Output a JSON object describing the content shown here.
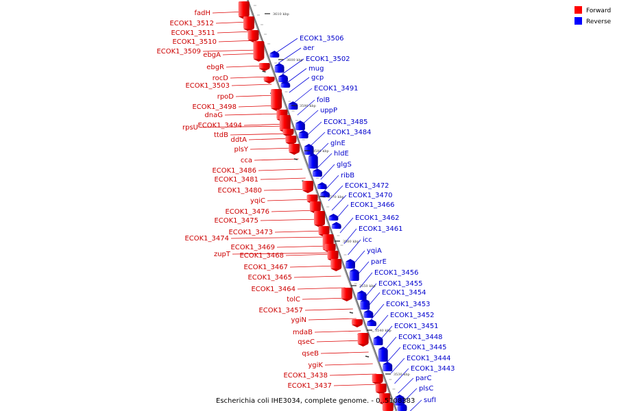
{
  "caption": "Escherichia coli IHE3034, complete genome. - 0..5108383",
  "legend": [
    {
      "label": "Forward",
      "color": "#ff0000"
    },
    {
      "label": "Reverse",
      "color": "#0000ff"
    }
  ],
  "forward_labels": [
    "fadH",
    "ECOK1_3512",
    "ECOK1_3511",
    "ECOK1_3510",
    "ECOK1_3509",
    "ebgA",
    "ebgR",
    "rocD",
    "ECOK1_3503",
    "rpoD",
    "ECOK1_3498",
    "dnaG",
    "rpsU",
    "ECOK1_3494",
    "ttdB",
    "ddtA",
    "plsY",
    "cca",
    "ECOK1_3486",
    "ECOK1_3481",
    "ECOK1_3480",
    "yqiC",
    "ECOK1_3476",
    "ECOK1_3475",
    "ECOK1_3474",
    "ECOK1_3473",
    "ECOK1_3469",
    "zupT",
    "ECOK1_3468",
    "ECOK1_3467",
    "ECOK1_3465",
    "ECOK1_3464",
    "tolC",
    "ECOK1_3457",
    "ygiN",
    "mdaB",
    "qseC",
    "qseB",
    "ygiK",
    "ECOK1_3438",
    "ECOK1_3437"
  ],
  "reverse_labels": [
    "ECOK1_3506",
    "aer",
    "ECOK1_3502",
    "mug",
    "gcp",
    "ECOK1_3491",
    "folB",
    "uppP",
    "ECOK1_3485",
    "ECOK1_3484",
    "glnE",
    "hldE",
    "glgS",
    "ribB",
    "ECOK1_3472",
    "ECOK1_3470",
    "ECOK1_3466",
    "ECOK1_3462",
    "ECOK1_3461",
    "icc",
    "yqiA",
    "parE",
    "ECOK1_3456",
    "ECOK1_3455",
    "ECOK1_3454",
    "ECOK1_3453",
    "ECOK1_3452",
    "ECOK1_3451",
    "ECOK1_3448",
    "ECOK1_3445",
    "ECOK1_3444",
    "ECOK1_3443",
    "parC",
    "plsC",
    "sufI"
  ],
  "scale_labels": [
    "3610 kbp",
    "3600 kbp",
    "3590 kbp",
    "3580 kbp",
    "3570 kbp",
    "3560 kbp",
    "3550 kbp",
    "3540 kbp",
    "3530 kbp"
  ],
  "colors": {
    "forward_text": "#cc0000",
    "reverse_text": "#0000cc",
    "forward_feature": "#ee0000",
    "reverse_feature": "#0000ee",
    "axis": "#888888"
  }
}
